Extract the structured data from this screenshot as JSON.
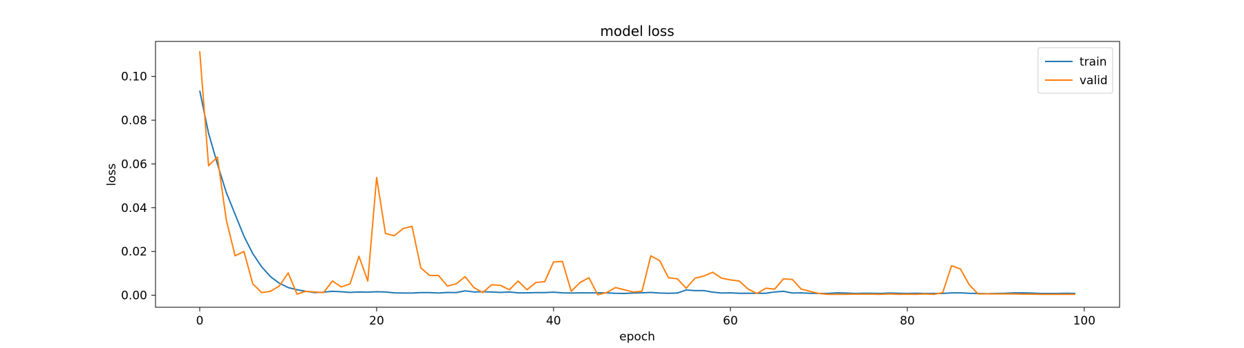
{
  "chart_data": {
    "type": "line",
    "title": "model loss",
    "xlabel": "epoch",
    "ylabel": "loss",
    "xlim": [
      -5,
      104
    ],
    "ylim": [
      -0.0055,
      0.116
    ],
    "xticks": [
      0,
      20,
      40,
      60,
      80,
      100
    ],
    "xtick_labels": [
      "0",
      "20",
      "40",
      "60",
      "80",
      "100"
    ],
    "yticks": [
      0.0,
      0.02,
      0.04,
      0.06,
      0.08,
      0.1
    ],
    "ytick_labels": [
      "0.00",
      "0.02",
      "0.04",
      "0.06",
      "0.08",
      "0.10"
    ],
    "grid": false,
    "legend_position": "top-right",
    "series": [
      {
        "name": "train",
        "color": "#1f77b4",
        "values": [
          0.0935,
          0.074,
          0.06,
          0.047,
          0.037,
          0.027,
          0.019,
          0.013,
          0.0085,
          0.0055,
          0.0035,
          0.0025,
          0.0018,
          0.0012,
          0.0014,
          0.0018,
          0.0016,
          0.0013,
          0.0015,
          0.0014,
          0.0016,
          0.0015,
          0.0011,
          0.001,
          0.001,
          0.0012,
          0.0012,
          0.001,
          0.0013,
          0.0012,
          0.002,
          0.0015,
          0.0016,
          0.0015,
          0.0013,
          0.0015,
          0.0011,
          0.0011,
          0.0012,
          0.0012,
          0.0014,
          0.0011,
          0.001,
          0.0011,
          0.0011,
          0.0011,
          0.0011,
          0.0009,
          0.0008,
          0.001,
          0.0011,
          0.0013,
          0.001,
          0.0009,
          0.001,
          0.0024,
          0.0021,
          0.0021,
          0.0014,
          0.001,
          0.0011,
          0.0009,
          0.0009,
          0.0009,
          0.0009,
          0.0015,
          0.0018,
          0.001,
          0.0011,
          0.0009,
          0.0008,
          0.0008,
          0.0011,
          0.001,
          0.0008,
          0.0009,
          0.0009,
          0.0008,
          0.001,
          0.0009,
          0.0008,
          0.0009,
          0.0008,
          0.0008,
          0.0008,
          0.0011,
          0.0011,
          0.0009,
          0.0008,
          0.0007,
          0.0008,
          0.0009,
          0.0011,
          0.0011,
          0.001,
          0.0008,
          0.0008,
          0.0008,
          0.0009,
          0.0008
        ]
      },
      {
        "name": "valid",
        "color": "#ff7f0e",
        "values": [
          0.1115,
          0.0592,
          0.0632,
          0.0345,
          0.018,
          0.02,
          0.0052,
          0.0012,
          0.0018,
          0.0042,
          0.0102,
          0.0005,
          0.0018,
          0.0015,
          0.0012,
          0.0065,
          0.0038,
          0.0052,
          0.0178,
          0.0065,
          0.0538,
          0.0282,
          0.0272,
          0.0305,
          0.0315,
          0.0125,
          0.009,
          0.009,
          0.0042,
          0.0052,
          0.0085,
          0.0035,
          0.0012,
          0.0048,
          0.0045,
          0.0025,
          0.0065,
          0.0025,
          0.0058,
          0.0062,
          0.0152,
          0.0155,
          0.0018,
          0.0058,
          0.008,
          0.0002,
          0.0012,
          0.0035,
          0.0025,
          0.0015,
          0.0018,
          0.018,
          0.0158,
          0.008,
          0.0075,
          0.0032,
          0.0078,
          0.0088,
          0.0105,
          0.0078,
          0.007,
          0.0065,
          0.0028,
          0.0008,
          0.0032,
          0.0028,
          0.0075,
          0.0072,
          0.0028,
          0.0018,
          0.0008,
          0.0004,
          0.0004,
          0.0004,
          0.0005,
          0.0005,
          0.0005,
          0.0004,
          0.0006,
          0.0004,
          0.0005,
          0.0004,
          0.0006,
          0.0004,
          0.0012,
          0.0135,
          0.012,
          0.0048,
          0.0006,
          0.0006,
          0.0006,
          0.0006,
          0.0006,
          0.0005,
          0.0005,
          0.0004,
          0.0004,
          0.0004,
          0.0004,
          0.0004
        ]
      }
    ]
  }
}
